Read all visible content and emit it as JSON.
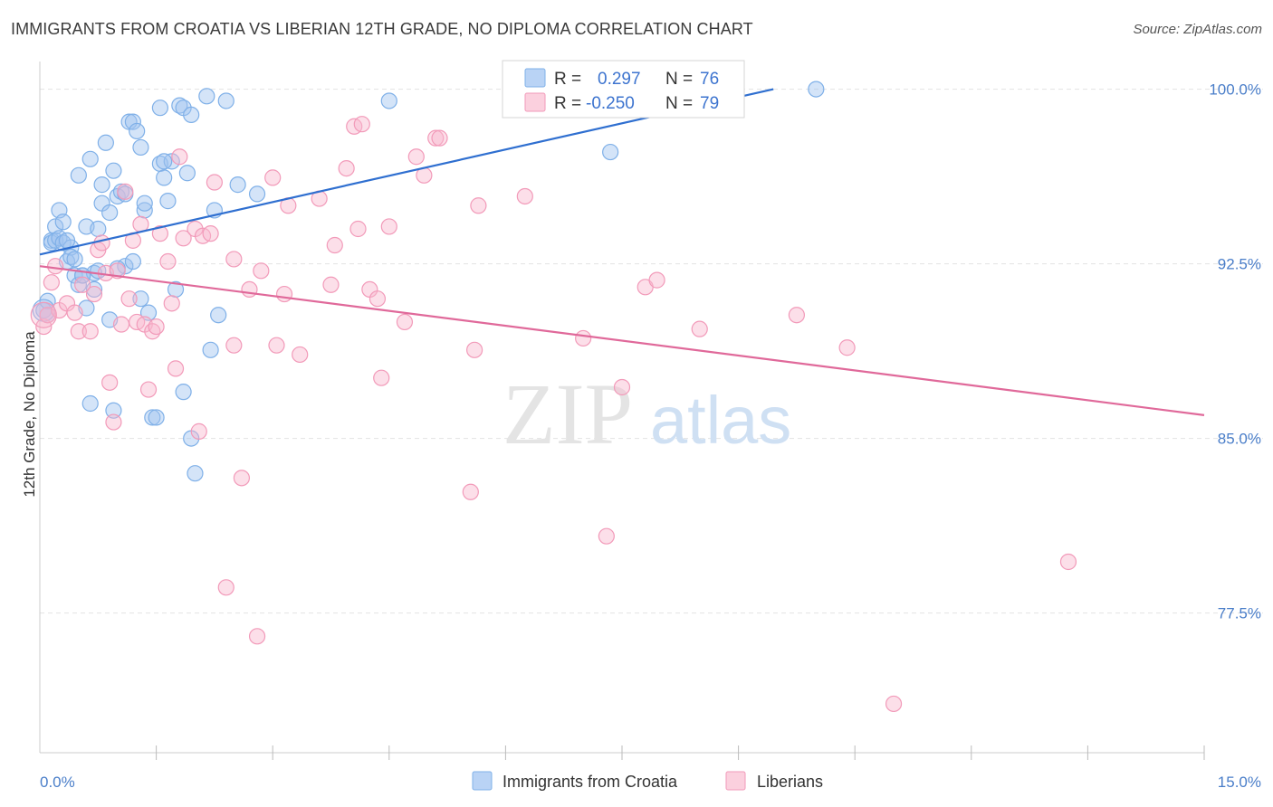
{
  "title": "IMMIGRANTS FROM CROATIA VS LIBERIAN 12TH GRADE, NO DIPLOMA CORRELATION CHART",
  "source": "Source: ZipAtlas.com",
  "watermark": {
    "zip": "ZIP",
    "atlas": "atlas"
  },
  "stats": {
    "r_label": "R =",
    "n_label": "N =",
    "rows": [
      {
        "r": "0.297",
        "n": "76",
        "color": "#7fb0e8"
      },
      {
        "r": "-0.250",
        "n": "79",
        "color": "#f29ab9"
      }
    ]
  },
  "chart_data": {
    "type": "scatter",
    "title": "IMMIGRANTS FROM CROATIA VS LIBERIAN 12TH GRADE, NO DIPLOMA CORRELATION CHART",
    "ylabel": "12th Grade, No Diploma",
    "xlabel": "",
    "xlim": [
      0,
      15
    ],
    "ylim": [
      71.5,
      101.5
    ],
    "x_tick_labels": [
      "0.0%",
      "15.0%"
    ],
    "y_ticks": [
      77.5,
      85.0,
      92.5,
      100.0
    ],
    "y_tick_labels": [
      "77.5%",
      "85.0%",
      "92.5%",
      "100.0%"
    ],
    "grid": true,
    "legend_position": "bottom-center",
    "series": [
      {
        "name": "Immigrants from Croatia",
        "color": "#7fb0e8",
        "line_color": "#2f6fd0",
        "trend": {
          "x": [
            0.0,
            9.45
          ],
          "y": [
            92.9,
            100.0
          ]
        },
        "points": [
          [
            0.05,
            90.5
          ],
          [
            0.1,
            90.3
          ],
          [
            0.15,
            93.5
          ],
          [
            0.15,
            93.4
          ],
          [
            0.2,
            94.1
          ],
          [
            0.2,
            93.5
          ],
          [
            0.25,
            93.6
          ],
          [
            0.25,
            94.8
          ],
          [
            0.3,
            93.4
          ],
          [
            0.3,
            94.3
          ],
          [
            0.35,
            92.6
          ],
          [
            0.4,
            93.2
          ],
          [
            0.4,
            92.8
          ],
          [
            0.45,
            92.0
          ],
          [
            0.45,
            92.7
          ],
          [
            0.5,
            91.6
          ],
          [
            0.5,
            96.3
          ],
          [
            0.55,
            92.0
          ],
          [
            0.6,
            94.1
          ],
          [
            0.6,
            90.6
          ],
          [
            0.65,
            97.0
          ],
          [
            0.65,
            86.5
          ],
          [
            0.7,
            91.4
          ],
          [
            0.7,
            92.1
          ],
          [
            0.75,
            94.0
          ],
          [
            0.8,
            95.1
          ],
          [
            0.8,
            95.9
          ],
          [
            0.85,
            97.7
          ],
          [
            0.9,
            94.7
          ],
          [
            0.9,
            90.1
          ],
          [
            0.95,
            96.5
          ],
          [
            0.95,
            86.2
          ],
          [
            1.0,
            95.4
          ],
          [
            1.05,
            95.6
          ],
          [
            1.1,
            95.5
          ],
          [
            1.1,
            92.4
          ],
          [
            1.15,
            98.6
          ],
          [
            1.2,
            92.6
          ],
          [
            1.2,
            98.6
          ],
          [
            1.25,
            98.2
          ],
          [
            1.3,
            91.0
          ],
          [
            1.3,
            97.5
          ],
          [
            1.35,
            94.8
          ],
          [
            1.35,
            95.1
          ],
          [
            1.4,
            90.4
          ],
          [
            1.45,
            85.9
          ],
          [
            1.5,
            85.9
          ],
          [
            1.55,
            99.2
          ],
          [
            1.55,
            96.8
          ],
          [
            1.6,
            96.2
          ],
          [
            1.65,
            95.2
          ],
          [
            1.7,
            96.9
          ],
          [
            1.75,
            91.4
          ],
          [
            1.8,
            99.3
          ],
          [
            1.85,
            99.2
          ],
          [
            1.85,
            87.0
          ],
          [
            1.9,
            96.4
          ],
          [
            1.95,
            98.9
          ],
          [
            1.95,
            85.0
          ],
          [
            2.0,
            83.5
          ],
          [
            2.15,
            99.7
          ],
          [
            2.2,
            88.8
          ],
          [
            2.25,
            94.8
          ],
          [
            2.3,
            90.3
          ],
          [
            2.4,
            99.5
          ],
          [
            2.55,
            95.9
          ],
          [
            2.8,
            95.5
          ],
          [
            4.5,
            99.5
          ],
          [
            7.35,
            97.3
          ],
          [
            10.0,
            100.0
          ],
          [
            0.1,
            90.9
          ],
          [
            0.35,
            93.5
          ],
          [
            0.55,
            92.0
          ],
          [
            0.75,
            92.2
          ],
          [
            1.0,
            92.3
          ],
          [
            1.6,
            96.9
          ]
        ]
      },
      {
        "name": "Liberians",
        "color": "#f29ab9",
        "line_color": "#e0699a",
        "trend": {
          "x": [
            0.0,
            15.0
          ],
          "y": [
            92.4,
            86.0
          ]
        },
        "points": [
          [
            0.05,
            89.8
          ],
          [
            0.1,
            90.3
          ],
          [
            0.15,
            91.7
          ],
          [
            0.2,
            92.4
          ],
          [
            0.25,
            90.5
          ],
          [
            0.35,
            90.8
          ],
          [
            0.45,
            90.4
          ],
          [
            0.5,
            89.6
          ],
          [
            0.55,
            91.6
          ],
          [
            0.65,
            89.6
          ],
          [
            0.7,
            91.2
          ],
          [
            0.75,
            93.1
          ],
          [
            0.8,
            93.4
          ],
          [
            0.85,
            92.1
          ],
          [
            0.9,
            87.4
          ],
          [
            0.95,
            85.7
          ],
          [
            1.0,
            92.2
          ],
          [
            1.05,
            89.9
          ],
          [
            1.1,
            95.6
          ],
          [
            1.15,
            91.0
          ],
          [
            1.2,
            93.5
          ],
          [
            1.25,
            90.0
          ],
          [
            1.3,
            94.2
          ],
          [
            1.35,
            89.9
          ],
          [
            1.4,
            87.1
          ],
          [
            1.45,
            89.6
          ],
          [
            1.5,
            89.8
          ],
          [
            1.55,
            93.8
          ],
          [
            1.65,
            92.6
          ],
          [
            1.7,
            90.8
          ],
          [
            1.75,
            88.0
          ],
          [
            1.8,
            97.1
          ],
          [
            1.85,
            93.6
          ],
          [
            2.0,
            94.0
          ],
          [
            2.05,
            85.3
          ],
          [
            2.1,
            93.7
          ],
          [
            2.2,
            93.8
          ],
          [
            2.25,
            96.0
          ],
          [
            2.4,
            78.6
          ],
          [
            2.5,
            92.7
          ],
          [
            2.5,
            89.0
          ],
          [
            2.6,
            83.3
          ],
          [
            2.7,
            91.4
          ],
          [
            2.8,
            76.5
          ],
          [
            2.85,
            92.2
          ],
          [
            3.0,
            96.2
          ],
          [
            3.05,
            89.0
          ],
          [
            3.15,
            91.2
          ],
          [
            3.2,
            95.0
          ],
          [
            3.35,
            88.6
          ],
          [
            3.6,
            95.3
          ],
          [
            3.75,
            91.6
          ],
          [
            3.8,
            93.3
          ],
          [
            3.95,
            96.6
          ],
          [
            4.05,
            98.4
          ],
          [
            4.1,
            94.0
          ],
          [
            4.15,
            98.5
          ],
          [
            4.25,
            91.4
          ],
          [
            4.35,
            91.0
          ],
          [
            4.4,
            87.6
          ],
          [
            4.5,
            94.1
          ],
          [
            4.7,
            90.0
          ],
          [
            4.85,
            97.1
          ],
          [
            4.95,
            96.3
          ],
          [
            5.1,
            97.9
          ],
          [
            5.15,
            97.9
          ],
          [
            5.55,
            82.7
          ],
          [
            5.6,
            88.8
          ],
          [
            5.65,
            95.0
          ],
          [
            6.25,
            95.4
          ],
          [
            7.0,
            89.3
          ],
          [
            7.3,
            80.8
          ],
          [
            7.5,
            87.2
          ],
          [
            7.8,
            91.5
          ],
          [
            7.95,
            91.8
          ],
          [
            8.5,
            89.7
          ],
          [
            9.75,
            90.3
          ],
          [
            10.4,
            88.9
          ],
          [
            13.25,
            79.7
          ]
        ]
      }
    ]
  },
  "extra_point_liberians": [
    11.0,
    73.6
  ],
  "legend": [
    {
      "label": "Immigrants from Croatia",
      "color": "#7fb0e8"
    },
    {
      "label": "Liberians",
      "color": "#f29ab9"
    }
  ]
}
